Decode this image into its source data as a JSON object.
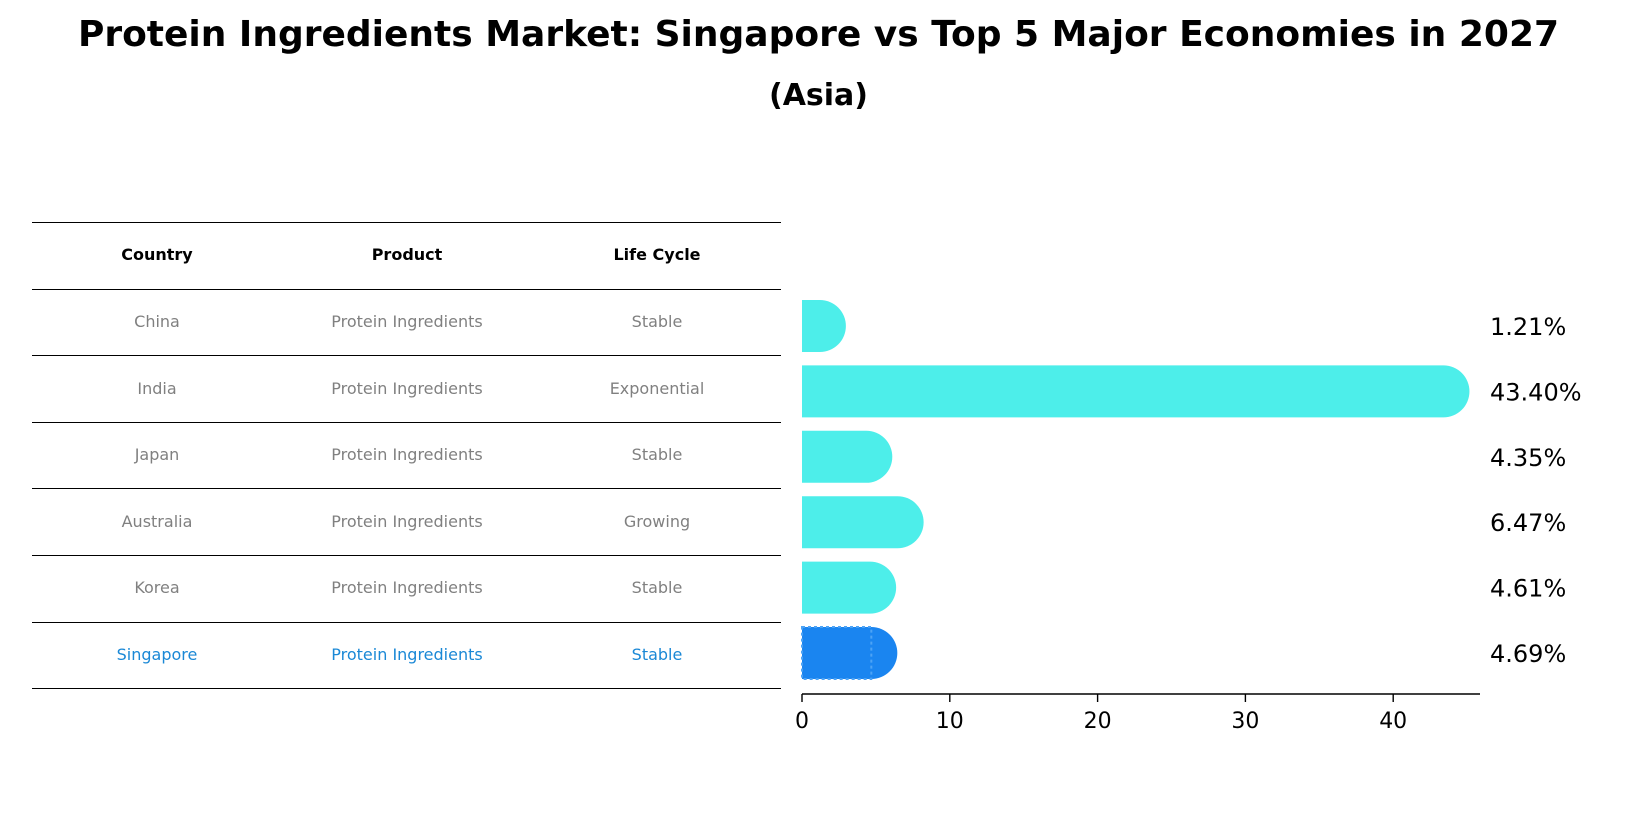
{
  "title": "Protein Ingredients Market: Singapore vs Top 5 Major Economies in 2027",
  "subtitle": "(Asia)",
  "table": {
    "headers": [
      "Country",
      "Product",
      "Life Cycle"
    ],
    "rows": [
      {
        "country": "China",
        "product": "Protein Ingredients",
        "life_cycle": "Stable"
      },
      {
        "country": "India",
        "product": "Protein Ingredients",
        "life_cycle": "Exponential"
      },
      {
        "country": "Japan",
        "product": "Protein Ingredients",
        "life_cycle": "Stable"
      },
      {
        "country": "Australia",
        "product": "Protein Ingredients",
        "life_cycle": "Growing"
      },
      {
        "country": "Korea",
        "product": "Protein Ingredients",
        "life_cycle": "Stable"
      },
      {
        "country": "Singapore",
        "product": "Protein Ingredients",
        "life_cycle": "Stable"
      }
    ],
    "highlight_row": "Singapore"
  },
  "chart_data": {
    "type": "bar",
    "orientation": "horizontal",
    "categories": [
      "China",
      "India",
      "Japan",
      "Australia",
      "Korea",
      "Singapore"
    ],
    "values": [
      1.21,
      43.4,
      4.35,
      6.47,
      4.61,
      4.69
    ],
    "value_labels": [
      "1.21%",
      "43.40%",
      "4.35%",
      "6.47%",
      "4.61%",
      "4.69%"
    ],
    "xlim": [
      0,
      45
    ],
    "xticks": [
      0,
      10,
      20,
      30,
      40
    ],
    "highlight": "Singapore",
    "grid": false
  },
  "colors": {
    "bar": "#4deeea",
    "highlight_bar": "#1a85f0",
    "highlight_text": "#1a88d6",
    "muted_text": "#808080"
  }
}
